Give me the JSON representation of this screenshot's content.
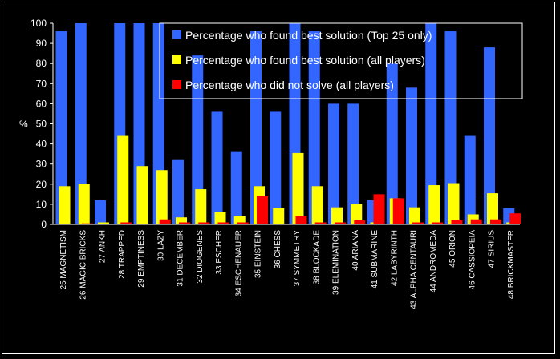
{
  "chart_data": {
    "type": "bar",
    "ylabel": "%",
    "ylim": [
      0,
      100
    ],
    "yticks": [
      0,
      10,
      20,
      30,
      40,
      50,
      60,
      70,
      80,
      90,
      100
    ],
    "grid": false,
    "legend_position": "top-right",
    "categories": [
      "25 MAGNETISM",
      "26 MAGIC BRICKS",
      "27 ANKH",
      "28 TRAPPED",
      "29 EMPTINESS",
      "30 LAZY",
      "31 DECEMBER",
      "32 DIOGENES",
      "33 ESCHER",
      "34 ESCHENAUER",
      "35 EINSTEIN",
      "36 CHESS",
      "37 SYMMETRY",
      "38 BLOCKADE",
      "39 ELEMINATION",
      "40 ARIANA",
      "41 SUBMARINE",
      "42 LABYRINTH",
      "43 ALPHA CENTAURI",
      "44 ANDROMEDA",
      "45 ORION",
      "46 CASSIOPEIA",
      "47 SIRIUS",
      "48 BRICKMASTER"
    ],
    "series": [
      {
        "name": "Percentage who found best solution (Top 25 only)",
        "color": "#3366ff",
        "values": [
          96,
          100,
          12,
          100,
          100,
          100,
          32,
          84,
          56,
          36,
          96,
          56,
          100,
          96,
          60,
          60,
          12,
          80,
          68,
          100,
          96,
          44,
          88,
          8
        ]
      },
      {
        "name": "Percentage who found best solution (all players)",
        "color": "#ffff00",
        "values": [
          19,
          20,
          1,
          44,
          29,
          27,
          3.5,
          17.5,
          6,
          4,
          19,
          8,
          35.5,
          19,
          8.5,
          10,
          1,
          13,
          8.5,
          19.5,
          20.5,
          5,
          15.5,
          1
        ]
      },
      {
        "name": "Percentage who did not solve (all players)",
        "color": "#ff0000",
        "values": [
          0,
          0.5,
          0,
          1,
          0,
          2.5,
          1,
          1,
          1,
          1,
          14,
          0,
          4,
          1,
          1,
          2,
          15,
          13,
          1,
          1,
          2,
          2.5,
          2.5,
          5.5
        ]
      }
    ]
  }
}
